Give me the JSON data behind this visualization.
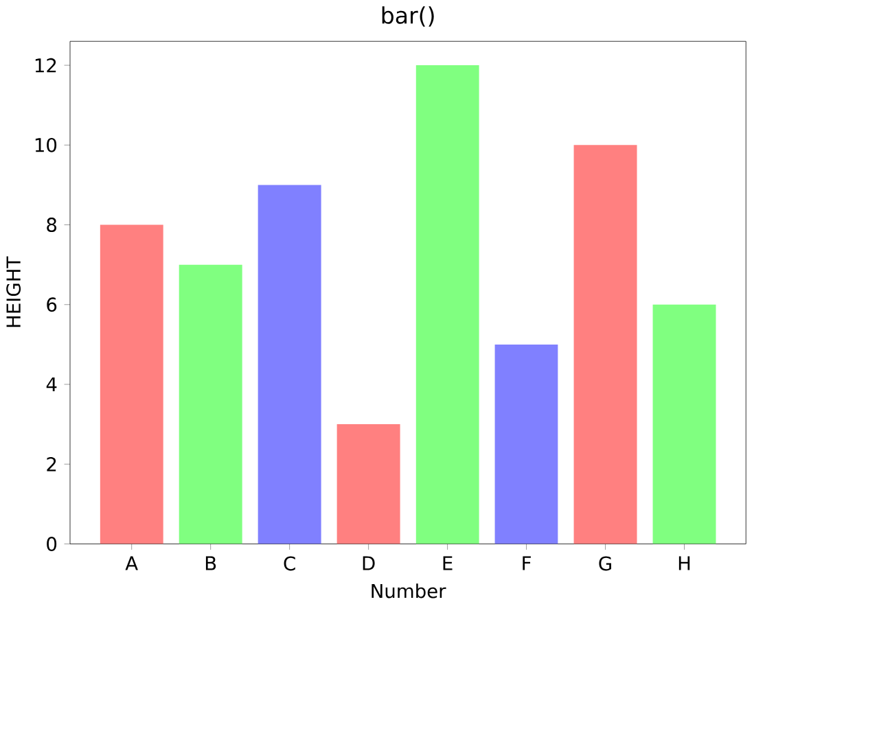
{
  "chart_data": {
    "type": "bar",
    "title": "bar()",
    "xlabel": "Number",
    "ylabel": "HEIGHT",
    "categories": [
      "A",
      "B",
      "C",
      "D",
      "E",
      "F",
      "G",
      "H"
    ],
    "values": [
      8,
      7,
      9,
      3,
      12,
      5,
      10,
      6
    ],
    "colors": [
      "#ff8080",
      "#80ff80",
      "#8080ff",
      "#ff8080",
      "#80ff80",
      "#8080ff",
      "#ff8080",
      "#80ff80"
    ],
    "ylim": [
      0,
      12.6
    ],
    "yticks": [
      0,
      2,
      4,
      6,
      8,
      10,
      12
    ],
    "grid": false
  }
}
